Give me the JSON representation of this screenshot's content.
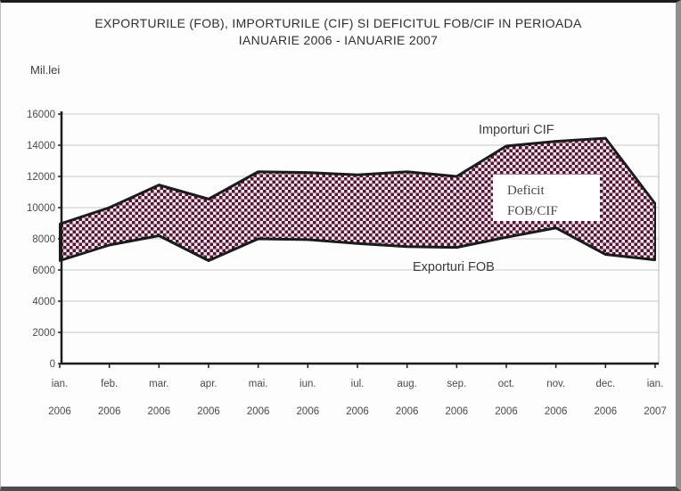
{
  "title": {
    "line1": "EXPORTURILE (FOB), IMPORTURILE (CIF) SI DEFICITUL FOB/CIF IN PERIOADA",
    "line2": "IANUARIE 2006 - IANUARIE 2007"
  },
  "y_axis_unit": "Mil.lei",
  "chart_data": {
    "type": "area",
    "subtype": "band-between-lines",
    "title": "EXPORTURILE (FOB), IMPORTURILE (CIF) SI DEFICITUL FOB/CIF IN PERIOADA IANUARIE 2006 - IANUARIE 2007",
    "ylabel": "Mil.lei",
    "ylim": [
      0,
      16000
    ],
    "ytick_step": 2000,
    "grid": true,
    "categories": [
      {
        "month": "ian.",
        "year": "2006"
      },
      {
        "month": "feb.",
        "year": "2006"
      },
      {
        "month": "mar.",
        "year": "2006"
      },
      {
        "month": "apr.",
        "year": "2006"
      },
      {
        "month": "mai.",
        "year": "2006"
      },
      {
        "month": "iun.",
        "year": "2006"
      },
      {
        "month": "iul.",
        "year": "2006"
      },
      {
        "month": "aug.",
        "year": "2006"
      },
      {
        "month": "sep.",
        "year": "2006"
      },
      {
        "month": "oct.",
        "year": "2006"
      },
      {
        "month": "nov.",
        "year": "2006"
      },
      {
        "month": "dec.",
        "year": "2006"
      },
      {
        "month": "ian.",
        "year": "2007"
      }
    ],
    "series": [
      {
        "name": "Importuri CIF",
        "values": [
          8950,
          10000,
          11450,
          10550,
          12300,
          12250,
          12100,
          12300,
          12000,
          13950,
          14250,
          14450,
          10250
        ]
      },
      {
        "name": "Exporturi FOB",
        "values": [
          6600,
          7600,
          8200,
          6600,
          8000,
          7950,
          7700,
          7500,
          7450,
          8100,
          8700,
          7000,
          6650
        ]
      }
    ],
    "band_label": {
      "line1": "Deficit",
      "line2": "FOB/CIF"
    },
    "annotations": {
      "imports_label": "Importuri CIF",
      "exports_label": "Exporturi FOB"
    }
  },
  "colors": {
    "pattern_dark": "#4f1830",
    "pattern_light": "#f5e2ee",
    "line": "#1b1b1b",
    "grid": "#c9c9c9",
    "axis": "#1b1b1b",
    "tick_text": "#4a4a4a",
    "label_text": "#3c3c3c",
    "deficit_box_bg": "#ffffff"
  }
}
